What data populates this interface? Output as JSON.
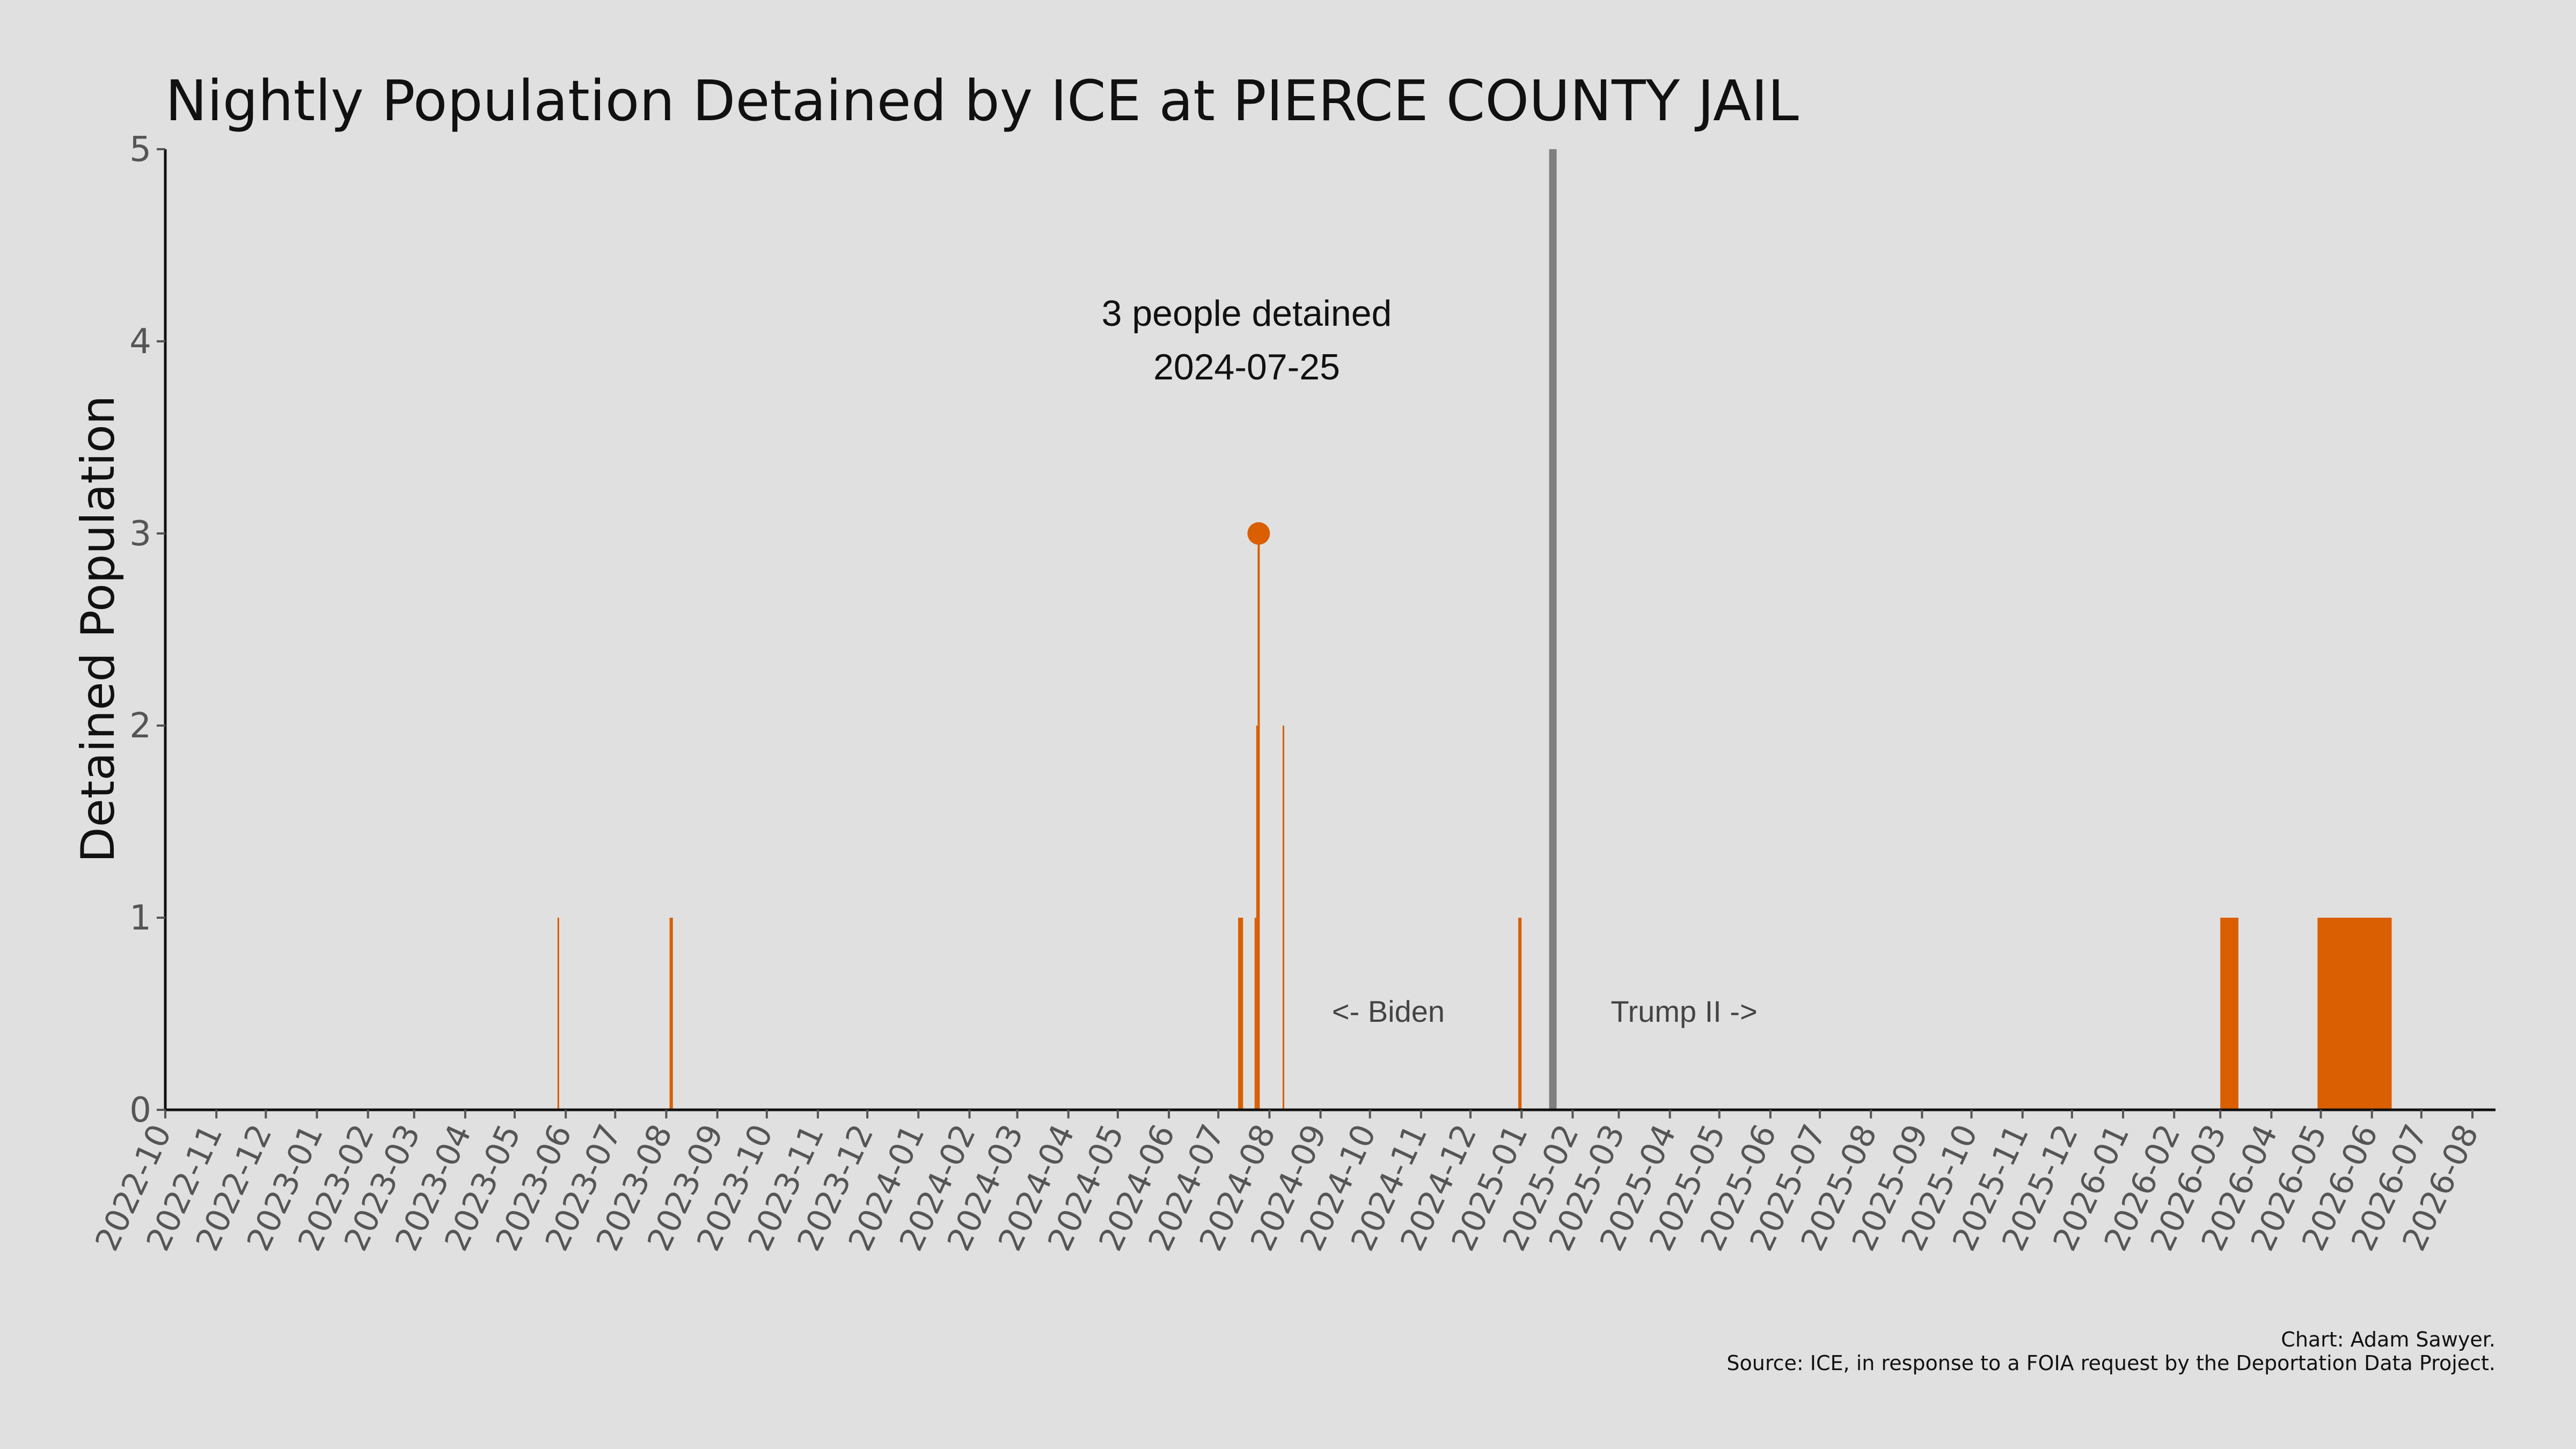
{
  "chart_data": {
    "type": "bar",
    "title": "Nightly Population Detained by ICE at PIERCE COUNTY JAIL",
    "ylabel": "Detained Population",
    "xlabel": "",
    "ylim": [
      0,
      5
    ],
    "yticks": [
      0,
      1,
      2,
      3,
      4,
      5
    ],
    "xlim": [
      "2022-10-01",
      "2026-08-15"
    ],
    "xticks": [
      "2022-10",
      "2022-11",
      "2022-12",
      "2023-01",
      "2023-02",
      "2023-03",
      "2023-04",
      "2023-05",
      "2023-06",
      "2023-07",
      "2023-08",
      "2023-09",
      "2023-10",
      "2023-11",
      "2023-12",
      "2024-01",
      "2024-02",
      "2024-03",
      "2024-04",
      "2024-05",
      "2024-06",
      "2024-07",
      "2024-08",
      "2024-09",
      "2024-10",
      "2024-11",
      "2024-12",
      "2025-01",
      "2025-02",
      "2025-03",
      "2025-04",
      "2025-05",
      "2025-06",
      "2025-07",
      "2025-08",
      "2025-09",
      "2025-10",
      "2025-11",
      "2025-12",
      "2026-01",
      "2026-02",
      "2026-03",
      "2026-04",
      "2026-05",
      "2026-06",
      "2026-07",
      "2026-08"
    ],
    "grid": false,
    "series": [
      {
        "color": "#d95f02",
        "bars": [
          {
            "start": "2023-05-27",
            "end": "2023-05-28",
            "value": 1
          },
          {
            "start": "2023-08-03",
            "end": "2023-08-05",
            "value": 1
          },
          {
            "start": "2024-07-13",
            "end": "2024-07-16",
            "value": 1
          },
          {
            "start": "2024-07-23",
            "end": "2024-07-24",
            "value": 1
          },
          {
            "start": "2024-07-24",
            "end": "2024-07-25",
            "value": 2
          },
          {
            "start": "2024-07-25",
            "end": "2024-07-26",
            "value": 3
          },
          {
            "start": "2024-08-09",
            "end": "2024-08-10",
            "value": 2
          },
          {
            "start": "2024-12-30",
            "end": "2025-01-01",
            "value": 1
          },
          {
            "start": "2026-03-01",
            "end": "2026-03-12",
            "value": 1
          },
          {
            "start": "2026-04-29",
            "end": "2026-06-13",
            "value": 1
          }
        ]
      }
    ],
    "peak": {
      "date": "2024-07-25",
      "value": 3,
      "color": "#d95f02"
    },
    "annotation": {
      "line1": "3 people detained",
      "line2": "2024-07-25"
    },
    "divider": {
      "date": "2025-01-20",
      "color": "#808080"
    },
    "era_labels": {
      "left": "<- Biden",
      "right": "Trump II ->"
    },
    "credits": {
      "line1": "Chart: Adam Sawyer.",
      "line2": "Source: ICE, in response to a FOIA request by the Deportation Data Project."
    }
  }
}
